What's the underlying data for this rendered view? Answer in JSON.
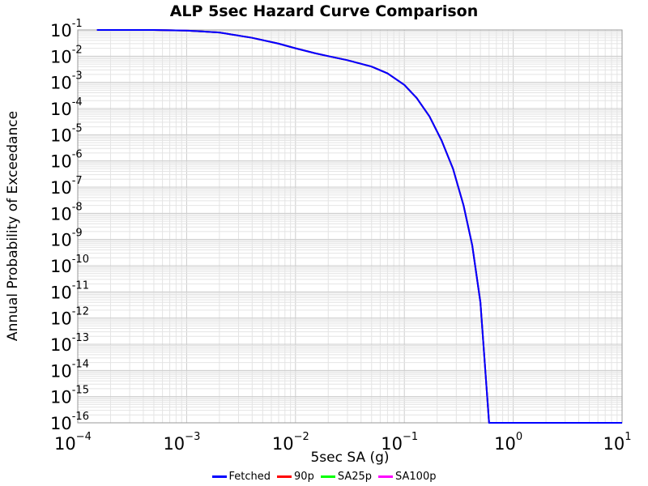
{
  "chart_data": {
    "type": "line",
    "title": "ALP 5sec Hazard Curve Comparison",
    "xlabel": "5sec SA (g)",
    "ylabel": "Annual Probability of Exceedance",
    "xscale": "log",
    "yscale": "log",
    "xlim": [
      0.0001,
      10
    ],
    "ylim": [
      1e-16,
      0.1
    ],
    "x_ticks": [
      {
        "base": "10",
        "exp": "−4"
      },
      {
        "base": "10",
        "exp": "−3"
      },
      {
        "base": "10",
        "exp": "−2"
      },
      {
        "base": "10",
        "exp": "−1"
      },
      {
        "base": "10",
        "exp": "0"
      },
      {
        "base": "10",
        "exp": "1"
      }
    ],
    "y_ticks": [
      {
        "base": "10",
        "exp": "-1"
      },
      {
        "base": "10",
        "exp": "-2"
      },
      {
        "base": "10",
        "exp": "-3"
      },
      {
        "base": "10",
        "exp": "-4"
      },
      {
        "base": "10",
        "exp": "-5"
      },
      {
        "base": "10",
        "exp": "-6"
      },
      {
        "base": "10",
        "exp": "-7"
      },
      {
        "base": "10",
        "exp": "-8"
      },
      {
        "base": "10",
        "exp": "-9"
      },
      {
        "base": "10",
        "exp": "-10"
      },
      {
        "base": "10",
        "exp": "-11"
      },
      {
        "base": "10",
        "exp": "-12"
      },
      {
        "base": "10",
        "exp": "-13"
      },
      {
        "base": "10",
        "exp": "-14"
      },
      {
        "base": "10",
        "exp": "-15"
      },
      {
        "base": "10",
        "exp": "-16"
      }
    ],
    "grid": true,
    "legend_position": "bottom",
    "series": [
      {
        "name": "Fetched",
        "color": "#0000ff",
        "x": [
          0.00015,
          0.0005,
          0.001,
          0.002,
          0.004,
          0.007,
          0.01,
          0.015,
          0.02,
          0.03,
          0.05,
          0.07,
          0.1,
          0.13,
          0.17,
          0.22,
          0.28,
          0.35,
          0.42,
          0.5,
          0.6,
          0.7,
          0.85,
          1.0,
          1.5,
          3,
          10
        ],
        "y": [
          0.1,
          0.1,
          0.095,
          0.08,
          0.05,
          0.03,
          0.02,
          0.013,
          0.01,
          0.007,
          0.004,
          0.0022,
          0.0008,
          0.00025,
          5e-05,
          6e-06,
          5e-07,
          2e-08,
          6e-10,
          4e-12,
          1e-16,
          1e-16,
          1e-16,
          1e-16,
          1e-16,
          1e-16,
          1e-16
        ]
      },
      {
        "name": "90p",
        "color": "#ff0000",
        "x": [
          0.00015,
          0.0005,
          0.001,
          0.002,
          0.004,
          0.007,
          0.01,
          0.015,
          0.02,
          0.03,
          0.05,
          0.07,
          0.1,
          0.13,
          0.17,
          0.22,
          0.28,
          0.35,
          0.42,
          0.5,
          0.6,
          0.7,
          0.85,
          1.0,
          1.5,
          3,
          10
        ],
        "y": [
          0.1,
          0.1,
          0.095,
          0.08,
          0.05,
          0.03,
          0.02,
          0.013,
          0.01,
          0.007,
          0.004,
          0.0022,
          0.0008,
          0.00025,
          5e-05,
          6e-06,
          5e-07,
          2e-08,
          6e-10,
          4e-12,
          1e-16,
          1e-16,
          1e-16,
          1e-16,
          1e-16,
          1e-16,
          1e-16
        ]
      },
      {
        "name": "SA25p",
        "color": "#00ff00",
        "x": [
          0.00015,
          0.0005,
          0.001,
          0.002,
          0.004,
          0.007,
          0.01,
          0.015,
          0.02,
          0.03,
          0.05,
          0.07,
          0.1,
          0.13,
          0.17,
          0.22,
          0.28,
          0.35,
          0.42,
          0.5,
          0.6,
          0.7,
          0.85,
          1.0,
          1.5,
          3,
          10
        ],
        "y": [
          0.1,
          0.1,
          0.095,
          0.08,
          0.05,
          0.03,
          0.02,
          0.013,
          0.01,
          0.007,
          0.004,
          0.0022,
          0.0008,
          0.00025,
          5e-05,
          6e-06,
          5e-07,
          2e-08,
          6e-10,
          4e-12,
          1e-16,
          1e-16,
          1e-16,
          1e-16,
          1e-16,
          1e-16,
          1e-16
        ]
      },
      {
        "name": "SA100p",
        "color": "#ff00ff",
        "x": [
          0.00015,
          0.0005,
          0.001,
          0.002,
          0.004,
          0.007,
          0.01,
          0.015,
          0.02,
          0.03,
          0.05,
          0.07,
          0.1,
          0.13,
          0.17,
          0.22,
          0.28,
          0.35,
          0.42,
          0.5,
          0.6,
          0.7,
          0.85,
          1.0,
          1.5,
          3,
          10
        ],
        "y": [
          0.1,
          0.1,
          0.095,
          0.08,
          0.05,
          0.03,
          0.02,
          0.013,
          0.01,
          0.007,
          0.004,
          0.0022,
          0.0008,
          0.00025,
          5e-05,
          6e-06,
          5e-07,
          2e-08,
          6e-10,
          4e-12,
          1e-16,
          1e-16,
          1e-16,
          1e-16,
          1e-16,
          1e-16,
          1e-16
        ]
      }
    ]
  },
  "legend": {
    "items": [
      {
        "label": "Fetched",
        "color": "#0000ff"
      },
      {
        "label": "90p",
        "color": "#ff0000"
      },
      {
        "label": "SA25p",
        "color": "#00ff00"
      },
      {
        "label": "SA100p",
        "color": "#ff00ff"
      }
    ]
  }
}
